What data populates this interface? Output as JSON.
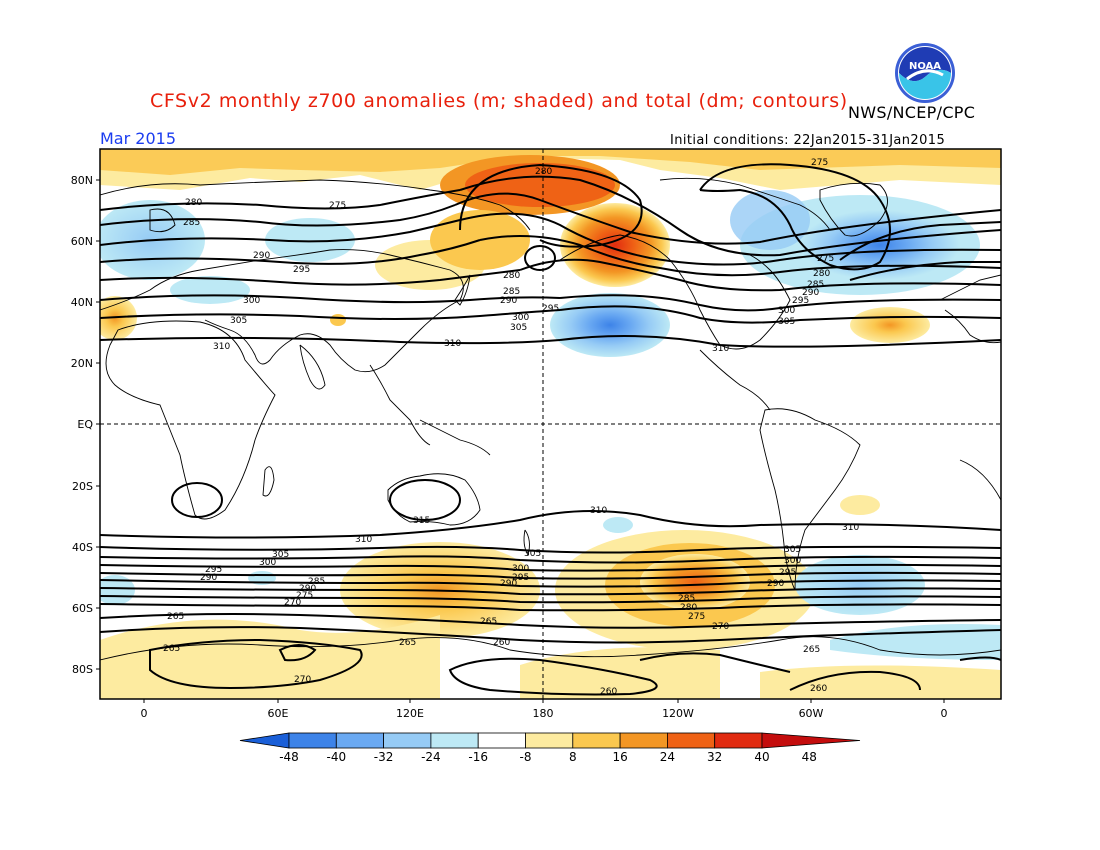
{
  "title": "CFSv2 monthly z700 anomalies (m; shaded) and total (dm; contours)",
  "agency": "NWS/NCEP/CPC",
  "logo_text": "NOAA",
  "month": "Mar 2015",
  "initial_conditions": "Initial conditions: 22Jan2015-31Jan2015",
  "map": {
    "lon_range": [
      -20,
      380
    ],
    "lat_range": [
      -90,
      90
    ],
    "lat_ticks": [
      "80N",
      "60N",
      "40N",
      "20N",
      "EQ",
      "20S",
      "40S",
      "60S",
      "80S"
    ],
    "lon_ticks": [
      "0",
      "60E",
      "120E",
      "180",
      "120W",
      "60W",
      "0"
    ],
    "colors": {
      "background": "#ffffff",
      "frame": "#000000",
      "coast": "#000000",
      "contour": "#000000"
    }
  },
  "colorbar": {
    "labels": [
      "-48",
      "-40",
      "-32",
      "-24",
      "-16",
      "-8",
      "8",
      "16",
      "24",
      "32",
      "40",
      "48"
    ],
    "colors": [
      "#1a5fd8",
      "#3d83e8",
      "#6aa9f2",
      "#96cbf5",
      "#bde9f5",
      "#ffffff",
      "#fdeba0",
      "#fbc84f",
      "#f39624",
      "#ef6215",
      "#e12b10",
      "#c40d0d"
    ]
  },
  "contour_labels": [
    "280",
    "275",
    "285",
    "290",
    "295",
    "300",
    "305",
    "310",
    "315",
    "265",
    "270",
    "260"
  ]
}
